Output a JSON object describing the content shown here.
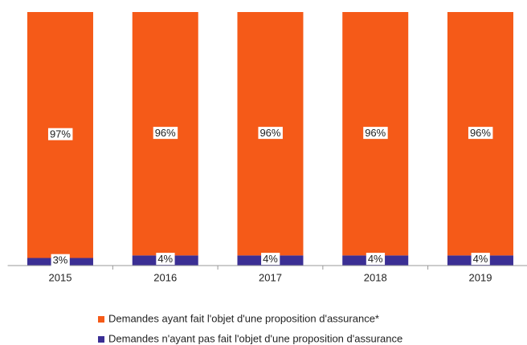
{
  "chart_data": {
    "type": "stacked_bar",
    "categories": [
      "2015",
      "2016",
      "2017",
      "2018",
      "2019"
    ],
    "series": [
      {
        "name": "Demandes ayant fait l'objet d'une proposition d'assurance*",
        "color": "#f55a18",
        "values": [
          97,
          96,
          96,
          96,
          96
        ],
        "value_labels": [
          "97%",
          "96%",
          "96%",
          "96%",
          "96%"
        ]
      },
      {
        "name": "Demandes n'ayant pas fait l'objet d'une proposition d'assurance",
        "color": "#3b2f94",
        "values": [
          3,
          4,
          4,
          4,
          4
        ],
        "value_labels": [
          "3%",
          "4%",
          "4%",
          "4%",
          "4%"
        ]
      }
    ],
    "legend": "bottom"
  }
}
